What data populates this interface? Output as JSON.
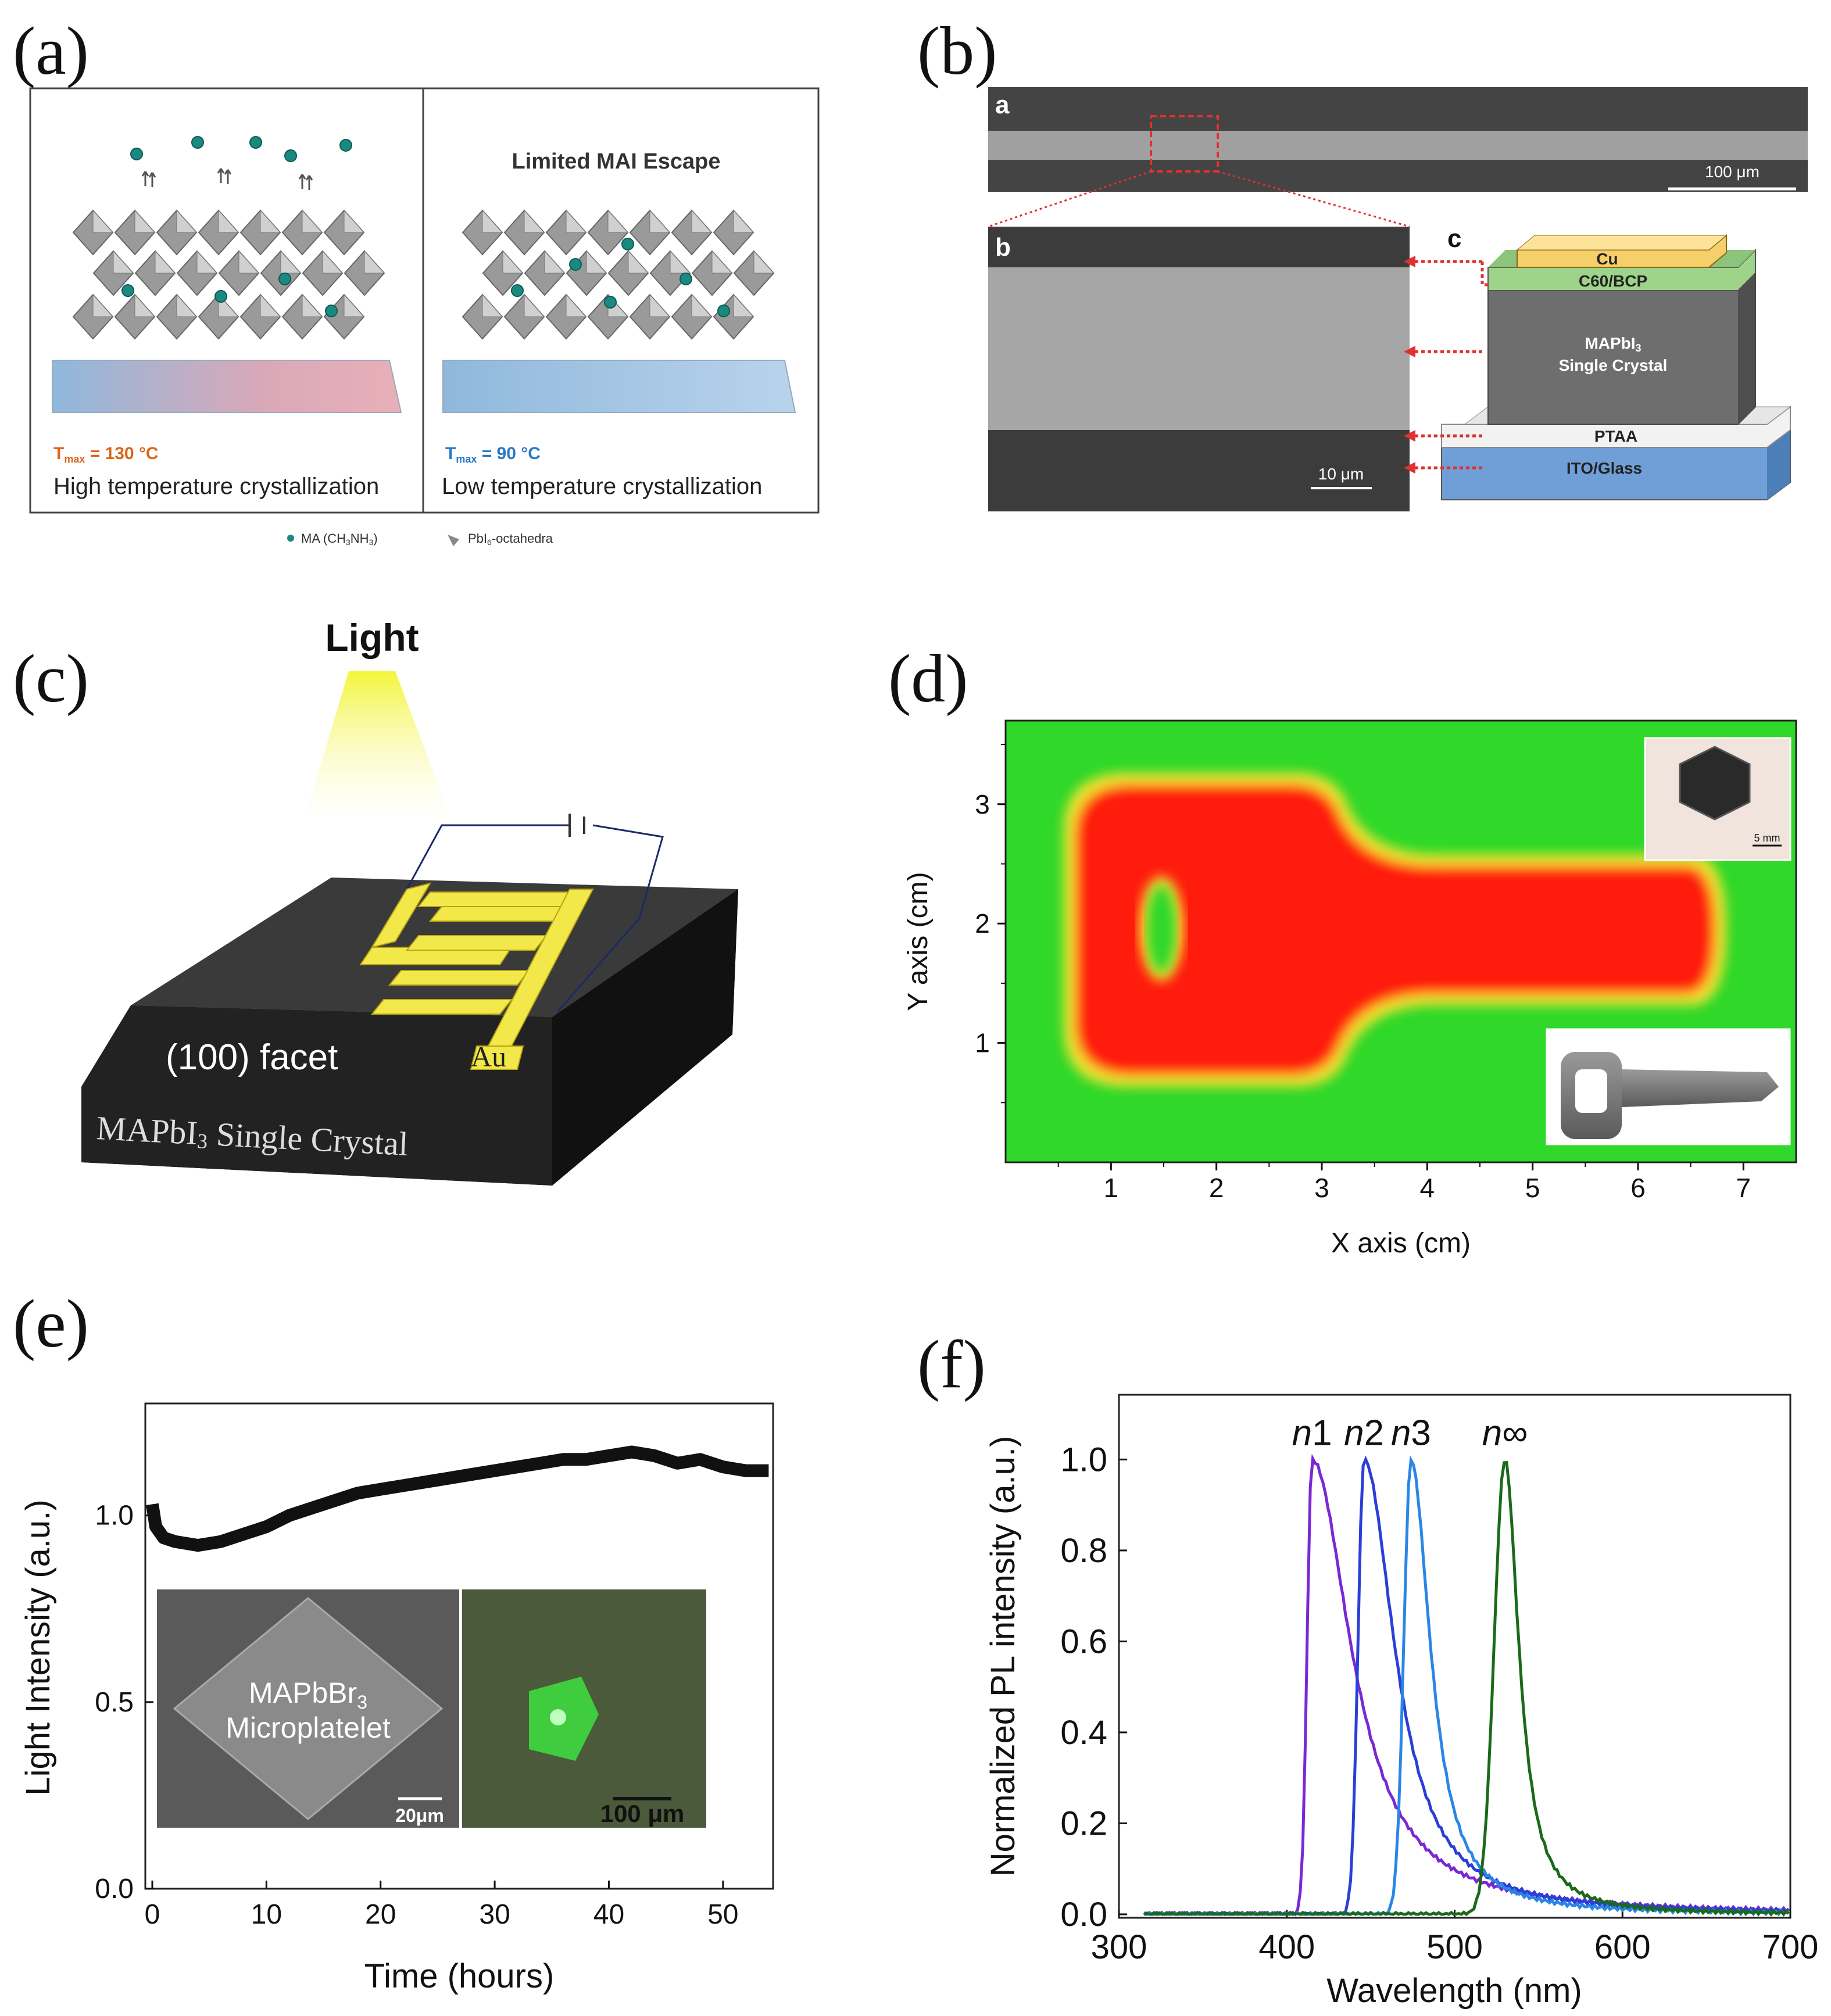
{
  "panel_labels": {
    "a": "(a)",
    "b": "(b)",
    "c": "(c)",
    "d": "(d)",
    "e": "(e)",
    "f": "(f)"
  },
  "panel_a": {
    "right_title": "Limited MAI Escape",
    "left_temp": "T",
    "left_temp_sub": "max",
    "left_temp_val": " = 130 °C",
    "right_temp": "T",
    "right_temp_sub": "max",
    "right_temp_val": " = 90 °C",
    "left_caption": "High temperature crystallization",
    "right_caption": "Low temperature crystallization",
    "legend_ma": "MA (CH",
    "legend_ma_sub1": "3",
    "legend_ma_mid": "NH",
    "legend_ma_sub2": "3",
    "legend_ma_end": ")",
    "legend_pb": "PbI",
    "legend_pb_sub": "6",
    "legend_pb_end": "-octahedra",
    "colors": {
      "left_temp": "#d9661c",
      "right_temp": "#2a78c7",
      "molecule": "#1a8a80"
    }
  },
  "panel_b": {
    "sub_a": "a",
    "sub_b": "b",
    "sub_c": "c",
    "scale_top": "100 μm",
    "scale_bottom": "10 μm",
    "layers": {
      "cu": "Cu",
      "c60": "C60/BCP",
      "crystal_line1": "MAPbI",
      "crystal_sub": "3",
      "crystal_line2": "Single Crystal",
      "ptaa": "PTAA",
      "ito": "ITO/Glass"
    },
    "colors": {
      "cu": "#f5d06a",
      "c60": "#9ed48a",
      "crystal": "#6e6e6e",
      "ptaa": "#f2f2f2",
      "ito": "#6f9fd6",
      "arrow": "#e03030"
    }
  },
  "panel_c": {
    "light": "Light",
    "facet": "(100) facet",
    "au": "Au",
    "crystal_text": "MAPbI",
    "crystal_sub": "3",
    "crystal_text2": " Single Crystal",
    "colors": {
      "electrode": "#f3e84a",
      "crystal": "#2b2b2b"
    }
  },
  "panel_d": {
    "xlabel": "X axis (cm)",
    "ylabel": "Y axis (cm)",
    "inset_scale": "5 mm",
    "colors": {
      "background": "#2fd829",
      "object": "#ff1a10",
      "edge": "#f1e233"
    }
  },
  "panel_e": {
    "inset_text1": "MAPbBr",
    "inset_sub": "3",
    "inset_text2": "Microplatelet",
    "scale_left": "20μm",
    "scale_right": "100 μm"
  },
  "panel_f": {
    "series_labels": [
      {
        "n": "n",
        "idx": "1"
      },
      {
        "n": "n",
        "idx": "2"
      },
      {
        "n": "n",
        "idx": "3"
      },
      {
        "n": "n",
        "idx": "∞"
      }
    ]
  },
  "chart_data": [
    {
      "type": "heatmap",
      "id": "panel_d",
      "xlabel": "X axis (cm)",
      "ylabel": "Y axis (cm)",
      "xticks": [
        1,
        2,
        3,
        4,
        5,
        6,
        7
      ],
      "yticks": [
        1,
        2,
        3
      ],
      "xlim": [
        0,
        7.5
      ],
      "ylim": [
        0,
        3.7
      ],
      "description_values": {
        "object_x_range": [
          0.85,
          6.6
        ],
        "object_y_range": [
          0.6,
          3.1
        ]
      }
    },
    {
      "type": "line",
      "id": "panel_e",
      "xlabel": "Time (hours)",
      "ylabel": "Light Intensity (a.u.)",
      "xlim": [
        0,
        55
      ],
      "ylim": [
        0,
        1.3
      ],
      "xticks": [
        0,
        10,
        20,
        30,
        40,
        50
      ],
      "yticks": [
        0.0,
        0.5,
        1.0
      ],
      "ytick_labels": [
        "0.0",
        "0.5",
        "1.0"
      ],
      "series": [
        {
          "x": [
            0,
            0.3,
            1,
            2,
            4,
            6,
            8,
            10,
            12,
            14,
            16,
            18,
            20,
            22,
            24,
            26,
            28,
            30,
            32,
            34,
            36,
            38,
            40,
            42,
            44,
            46,
            48,
            50,
            52,
            54
          ],
          "y": [
            1.03,
            0.97,
            0.94,
            0.93,
            0.92,
            0.93,
            0.95,
            0.97,
            1.0,
            1.02,
            1.04,
            1.06,
            1.07,
            1.08,
            1.09,
            1.1,
            1.11,
            1.12,
            1.13,
            1.14,
            1.15,
            1.15,
            1.16,
            1.17,
            1.16,
            1.14,
            1.15,
            1.13,
            1.12,
            1.12
          ]
        }
      ]
    },
    {
      "type": "line",
      "id": "panel_f",
      "xlabel": "Wavelength (nm)",
      "ylabel": "Normalized PL intensity (a.u.)",
      "xlim": [
        300,
        700
      ],
      "ylim": [
        0,
        1.15
      ],
      "xticks": [
        300,
        400,
        500,
        600,
        700
      ],
      "yticks": [
        0.0,
        0.2,
        0.4,
        0.6,
        0.8,
        1.0
      ],
      "ytick_labels": [
        "0.0",
        "0.2",
        "0.4",
        "0.6",
        "0.8",
        "1.0"
      ],
      "series": [
        {
          "name": "n1",
          "peak": 415,
          "width_left": 4,
          "width_right": 28,
          "color": "#7a28d6"
        },
        {
          "name": "n2",
          "peak": 446,
          "width_left": 5,
          "width_right": 22,
          "color": "#2a3fd8"
        },
        {
          "name": "n3",
          "peak": 474,
          "width_left": 6,
          "width_right": 14,
          "color": "#2a86e6"
        },
        {
          "name": "n∞",
          "peak": 530,
          "width_left": 9,
          "width_right": 10,
          "color": "#1a6a1a"
        }
      ]
    }
  ]
}
